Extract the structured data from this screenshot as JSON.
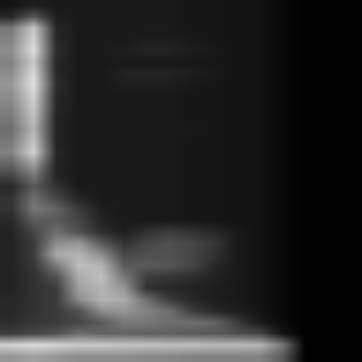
{
  "chart_data": {
    "type": "heatmap",
    "tick_labels": false,
    "color": "gray",
    "color_range": [
      0,
      255
    ],
    "cells": [
      [
        20,
        30,
        25,
        25,
        25,
        25,
        25,
        25,
        22,
        22,
        20,
        18,
        8,
        0,
        0,
        0
      ],
      [
        40,
        90,
        30,
        25,
        25,
        25,
        25,
        25,
        22,
        22,
        20,
        18,
        8,
        0,
        0,
        0
      ],
      [
        120,
        200,
        40,
        25,
        25,
        25,
        25,
        25,
        22,
        22,
        20,
        18,
        8,
        0,
        0,
        0
      ],
      [
        130,
        210,
        40,
        25,
        25,
        25,
        30,
        30,
        25,
        22,
        20,
        18,
        8,
        0,
        0,
        0
      ],
      [
        140,
        220,
        45,
        25,
        25,
        30,
        35,
        35,
        30,
        25,
        20,
        18,
        8,
        0,
        0,
        0
      ],
      [
        130,
        200,
        40,
        25,
        25,
        25,
        25,
        25,
        22,
        22,
        20,
        18,
        8,
        0,
        0,
        0
      ],
      [
        140,
        215,
        40,
        25,
        25,
        35,
        35,
        35,
        30,
        25,
        20,
        18,
        8,
        0,
        0,
        0
      ],
      [
        150,
        225,
        45,
        25,
        25,
        30,
        30,
        30,
        25,
        22,
        20,
        18,
        8,
        0,
        0,
        0
      ],
      [
        140,
        210,
        40,
        25,
        25,
        25,
        25,
        25,
        22,
        22,
        20,
        18,
        8,
        0,
        0,
        0
      ],
      [
        130,
        200,
        40,
        25,
        25,
        25,
        25,
        25,
        22,
        22,
        20,
        18,
        8,
        0,
        0,
        0
      ],
      [
        120,
        190,
        35,
        25,
        25,
        25,
        25,
        25,
        22,
        22,
        20,
        18,
        8,
        0,
        0,
        0
      ],
      [
        110,
        180,
        35,
        25,
        25,
        25,
        25,
        25,
        25,
        22,
        20,
        18,
        8,
        0,
        0,
        0
      ],
      [
        120,
        195,
        35,
        25,
        25,
        25,
        25,
        25,
        22,
        22,
        20,
        18,
        8,
        0,
        0,
        0
      ],
      [
        130,
        210,
        40,
        25,
        25,
        25,
        25,
        25,
        22,
        22,
        20,
        18,
        8,
        0,
        0,
        0
      ],
      [
        100,
        160,
        35,
        25,
        25,
        25,
        25,
        25,
        22,
        22,
        20,
        18,
        8,
        0,
        0,
        0
      ],
      [
        70,
        120,
        35,
        25,
        25,
        25,
        25,
        25,
        22,
        22,
        20,
        18,
        8,
        0,
        0,
        0
      ],
      [
        40,
        90,
        50,
        25,
        25,
        25,
        25,
        25,
        22,
        22,
        20,
        18,
        8,
        0,
        0,
        0
      ],
      [
        50,
        110,
        70,
        35,
        25,
        25,
        25,
        25,
        22,
        22,
        20,
        18,
        8,
        0,
        0,
        0
      ],
      [
        50,
        120,
        100,
        60,
        30,
        25,
        25,
        25,
        22,
        22,
        20,
        18,
        8,
        0,
        0,
        0
      ],
      [
        40,
        90,
        90,
        70,
        35,
        25,
        25,
        25,
        22,
        22,
        20,
        18,
        8,
        0,
        0,
        0
      ],
      [
        35,
        70,
        110,
        80,
        45,
        30,
        50,
        60,
        50,
        40,
        25,
        18,
        8,
        0,
        0,
        0
      ],
      [
        35,
        60,
        140,
        150,
        90,
        50,
        70,
        80,
        70,
        55,
        25,
        18,
        8,
        0,
        0,
        0
      ],
      [
        35,
        60,
        170,
        180,
        140,
        70,
        80,
        80,
        70,
        50,
        25,
        18,
        8,
        0,
        0,
        0
      ],
      [
        35,
        55,
        120,
        190,
        180,
        90,
        90,
        85,
        70,
        40,
        25,
        18,
        8,
        0,
        0,
        0
      ],
      [
        35,
        50,
        80,
        170,
        190,
        120,
        60,
        55,
        45,
        35,
        25,
        18,
        8,
        0,
        0,
        0
      ],
      [
        35,
        50,
        60,
        160,
        180,
        150,
        50,
        40,
        35,
        30,
        25,
        18,
        8,
        0,
        0,
        0
      ],
      [
        40,
        50,
        60,
        140,
        180,
        170,
        110,
        60,
        40,
        30,
        25,
        18,
        8,
        0,
        0,
        0
      ],
      [
        40,
        50,
        60,
        80,
        140,
        150,
        130,
        110,
        60,
        40,
        30,
        20,
        8,
        0,
        0,
        0
      ],
      [
        45,
        55,
        60,
        70,
        90,
        120,
        120,
        110,
        110,
        100,
        60,
        25,
        10,
        0,
        0,
        0
      ],
      [
        60,
        70,
        80,
        110,
        100,
        100,
        95,
        95,
        90,
        90,
        80,
        70,
        20,
        0,
        0,
        0
      ],
      [
        210,
        220,
        210,
        200,
        200,
        195,
        195,
        190,
        190,
        185,
        185,
        180,
        120,
        0,
        0,
        0
      ],
      [
        150,
        160,
        150,
        140,
        140,
        140,
        135,
        135,
        130,
        130,
        130,
        130,
        90,
        0,
        0,
        0
      ]
    ]
  }
}
